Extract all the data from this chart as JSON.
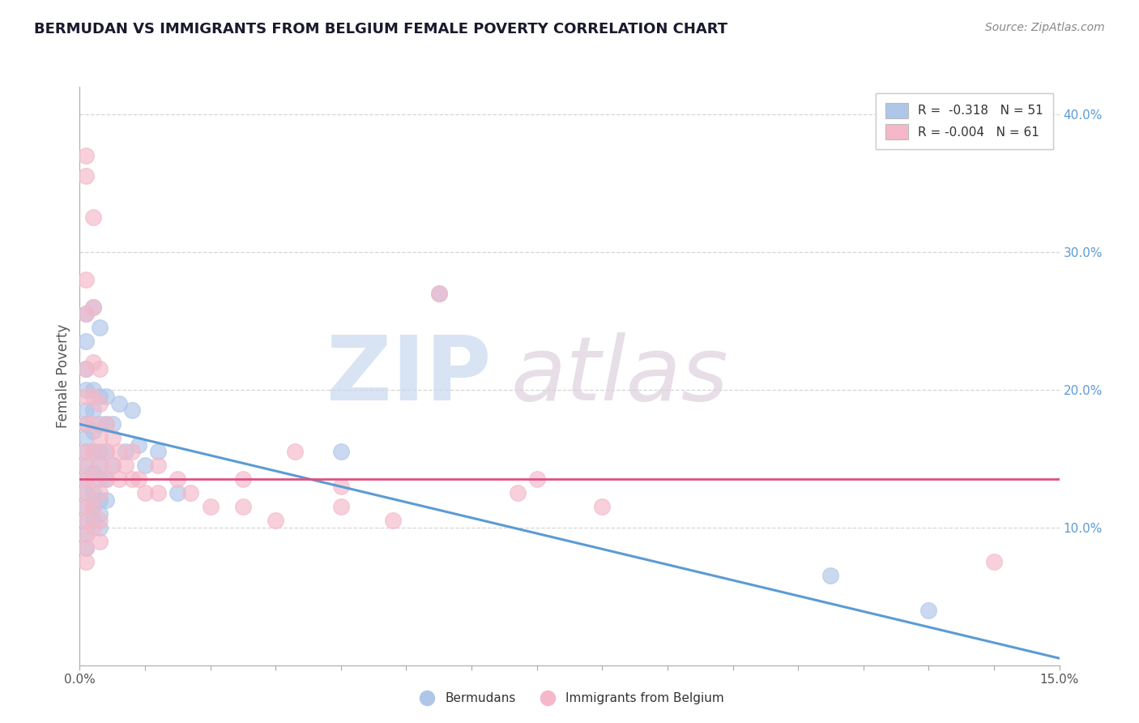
{
  "title": "BERMUDAN VS IMMIGRANTS FROM BELGIUM FEMALE POVERTY CORRELATION CHART",
  "source": "Source: ZipAtlas.com",
  "ylabel": "Female Poverty",
  "xlim": [
    0.0,
    0.15
  ],
  "ylim": [
    0.0,
    0.42
  ],
  "legend_entries": [
    {
      "label": "R =  -0.318   N = 51",
      "color": "#aec6e8"
    },
    {
      "label": "R = -0.004   N = 61",
      "color": "#f4b8c8"
    }
  ],
  "blue_scatter": [
    [
      0.001,
      0.255
    ],
    [
      0.001,
      0.235
    ],
    [
      0.001,
      0.215
    ],
    [
      0.001,
      0.2
    ],
    [
      0.001,
      0.185
    ],
    [
      0.001,
      0.175
    ],
    [
      0.001,
      0.165
    ],
    [
      0.001,
      0.155
    ],
    [
      0.001,
      0.145
    ],
    [
      0.001,
      0.135
    ],
    [
      0.001,
      0.125
    ],
    [
      0.001,
      0.115
    ],
    [
      0.001,
      0.105
    ],
    [
      0.001,
      0.095
    ],
    [
      0.001,
      0.085
    ],
    [
      0.002,
      0.26
    ],
    [
      0.002,
      0.2
    ],
    [
      0.002,
      0.185
    ],
    [
      0.002,
      0.17
    ],
    [
      0.002,
      0.155
    ],
    [
      0.002,
      0.14
    ],
    [
      0.002,
      0.125
    ],
    [
      0.002,
      0.115
    ],
    [
      0.002,
      0.105
    ],
    [
      0.003,
      0.245
    ],
    [
      0.003,
      0.195
    ],
    [
      0.003,
      0.175
    ],
    [
      0.003,
      0.155
    ],
    [
      0.003,
      0.145
    ],
    [
      0.003,
      0.135
    ],
    [
      0.003,
      0.12
    ],
    [
      0.003,
      0.11
    ],
    [
      0.003,
      0.1
    ],
    [
      0.004,
      0.195
    ],
    [
      0.004,
      0.175
    ],
    [
      0.004,
      0.155
    ],
    [
      0.004,
      0.135
    ],
    [
      0.004,
      0.12
    ],
    [
      0.005,
      0.175
    ],
    [
      0.005,
      0.145
    ],
    [
      0.006,
      0.19
    ],
    [
      0.007,
      0.155
    ],
    [
      0.008,
      0.185
    ],
    [
      0.009,
      0.16
    ],
    [
      0.01,
      0.145
    ],
    [
      0.012,
      0.155
    ],
    [
      0.015,
      0.125
    ],
    [
      0.04,
      0.155
    ],
    [
      0.055,
      0.27
    ],
    [
      0.115,
      0.065
    ],
    [
      0.13,
      0.04
    ]
  ],
  "pink_scatter": [
    [
      0.001,
      0.37
    ],
    [
      0.001,
      0.355
    ],
    [
      0.001,
      0.28
    ],
    [
      0.001,
      0.255
    ],
    [
      0.001,
      0.215
    ],
    [
      0.001,
      0.195
    ],
    [
      0.001,
      0.175
    ],
    [
      0.001,
      0.155
    ],
    [
      0.001,
      0.145
    ],
    [
      0.001,
      0.135
    ],
    [
      0.001,
      0.125
    ],
    [
      0.001,
      0.115
    ],
    [
      0.001,
      0.105
    ],
    [
      0.001,
      0.095
    ],
    [
      0.001,
      0.085
    ],
    [
      0.001,
      0.075
    ],
    [
      0.002,
      0.325
    ],
    [
      0.002,
      0.26
    ],
    [
      0.002,
      0.22
    ],
    [
      0.002,
      0.195
    ],
    [
      0.002,
      0.175
    ],
    [
      0.002,
      0.155
    ],
    [
      0.002,
      0.135
    ],
    [
      0.002,
      0.115
    ],
    [
      0.002,
      0.1
    ],
    [
      0.003,
      0.215
    ],
    [
      0.003,
      0.19
    ],
    [
      0.003,
      0.165
    ],
    [
      0.003,
      0.145
    ],
    [
      0.003,
      0.125
    ],
    [
      0.003,
      0.105
    ],
    [
      0.003,
      0.09
    ],
    [
      0.004,
      0.175
    ],
    [
      0.004,
      0.155
    ],
    [
      0.004,
      0.135
    ],
    [
      0.005,
      0.165
    ],
    [
      0.005,
      0.145
    ],
    [
      0.006,
      0.155
    ],
    [
      0.006,
      0.135
    ],
    [
      0.007,
      0.145
    ],
    [
      0.008,
      0.135
    ],
    [
      0.008,
      0.155
    ],
    [
      0.009,
      0.135
    ],
    [
      0.01,
      0.125
    ],
    [
      0.012,
      0.145
    ],
    [
      0.012,
      0.125
    ],
    [
      0.015,
      0.135
    ],
    [
      0.017,
      0.125
    ],
    [
      0.02,
      0.115
    ],
    [
      0.025,
      0.135
    ],
    [
      0.025,
      0.115
    ],
    [
      0.03,
      0.105
    ],
    [
      0.033,
      0.155
    ],
    [
      0.04,
      0.13
    ],
    [
      0.04,
      0.115
    ],
    [
      0.048,
      0.105
    ],
    [
      0.055,
      0.27
    ],
    [
      0.067,
      0.125
    ],
    [
      0.07,
      0.135
    ],
    [
      0.08,
      0.115
    ],
    [
      0.14,
      0.075
    ]
  ],
  "blue_line_x": [
    0.0,
    0.15
  ],
  "blue_line_y": [
    0.175,
    0.005
  ],
  "pink_line_x": [
    0.0,
    0.15
  ],
  "pink_line_y": [
    0.135,
    0.135
  ],
  "blue_color": "#5b9bd5",
  "pink_color": "#e05080",
  "blue_scatter_color": "#aec6e8",
  "pink_scatter_color": "#f4b8c8",
  "grid_color": "#cccccc",
  "background_color": "#ffffff",
  "right_yticks": [
    0.1,
    0.2,
    0.3,
    0.4
  ],
  "right_ytick_labels": [
    "10.0%",
    "20.0%",
    "30.0%",
    "40.0%"
  ]
}
